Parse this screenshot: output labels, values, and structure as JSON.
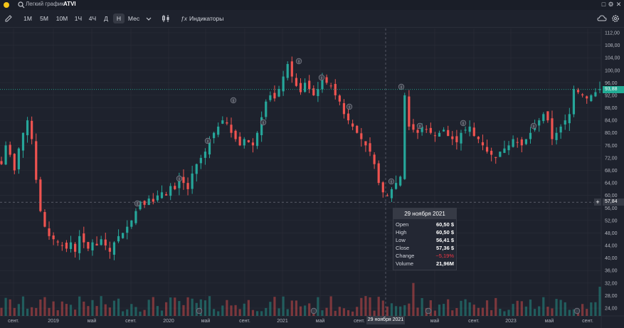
{
  "app": {
    "title": "Легкий график",
    "symbol": "ATVI"
  },
  "toolbar": {
    "intervals": [
      "1M",
      "5M",
      "10M",
      "1Ч",
      "4Ч",
      "Д",
      "Н",
      "Мес"
    ],
    "active_interval": "Н",
    "indicators_label": "Индикаторы"
  },
  "price_axis": {
    "labels": [
      "112,00",
      "108,00",
      "104,00",
      "100,00",
      "96,00",
      "92,00",
      "88,00",
      "84,00",
      "80,00",
      "76,00",
      "72,00",
      "68,00",
      "64,00",
      "60,00",
      "56,00",
      "52,00",
      "48,00",
      "44,00",
      "40,00",
      "36,00",
      "32,00",
      "28,00",
      "24,00"
    ],
    "last_price": "93,88",
    "cursor_price": "57,84"
  },
  "time_axis": {
    "labels": [
      "сент.",
      "2019",
      "май",
      "сент.",
      "2020",
      "май",
      "сент.",
      "2021",
      "май",
      "сент.",
      "29 ноября 2021",
      "янв.",
      "май",
      "сент.",
      "2023",
      "май",
      "сент."
    ],
    "cursor_date": "29 ноября 2021"
  },
  "tooltip": {
    "date": "29 ноября 2021",
    "rows": [
      {
        "label": "Open",
        "value": "60,50 $"
      },
      {
        "label": "High",
        "value": "60,50 $"
      },
      {
        "label": "Low",
        "value": "56,41 $"
      },
      {
        "label": "Close",
        "value": "57,36 $"
      },
      {
        "label": "Change",
        "value": "−5,19%"
      },
      {
        "label": "Volume",
        "value": "21,96M"
      }
    ]
  },
  "colors": {
    "up": "#26a69a",
    "down": "#ef5350",
    "last": "#22ab94",
    "bg": "#1e222d"
  },
  "chart_data": {
    "type": "candlestick",
    "symbol": "ATVI",
    "period": "weekly",
    "y_range": [
      22,
      114
    ],
    "close_series": [
      70,
      76,
      73,
      68,
      75,
      80,
      84,
      78,
      65,
      55,
      50,
      47,
      46,
      45,
      44,
      43,
      45,
      42,
      47,
      45,
      43,
      45,
      44,
      46,
      44,
      42,
      45,
      47,
      48,
      50,
      52,
      55,
      58,
      57,
      59,
      58,
      60,
      61,
      60,
      63,
      62,
      66,
      64,
      62,
      67,
      70,
      72,
      74,
      78,
      80,
      82,
      84,
      83,
      80,
      78,
      76,
      78,
      77,
      76,
      80,
      85,
      90,
      92,
      91,
      94,
      98,
      102,
      98,
      95,
      93,
      96,
      94,
      92,
      94,
      97,
      96,
      95,
      92,
      90,
      86,
      84,
      82,
      80,
      78,
      76,
      74,
      70,
      64,
      61,
      60,
      62,
      64,
      66,
      92,
      82,
      81,
      80,
      82,
      81,
      80,
      79,
      80,
      81,
      79,
      78,
      77,
      80,
      81,
      82,
      79,
      78,
      76,
      74,
      73,
      72,
      74,
      75,
      76,
      78,
      77,
      76,
      78,
      80,
      82,
      84,
      86,
      84,
      78,
      80,
      82,
      84,
      86,
      94,
      93,
      92,
      91,
      92,
      93,
      94
    ]
  }
}
